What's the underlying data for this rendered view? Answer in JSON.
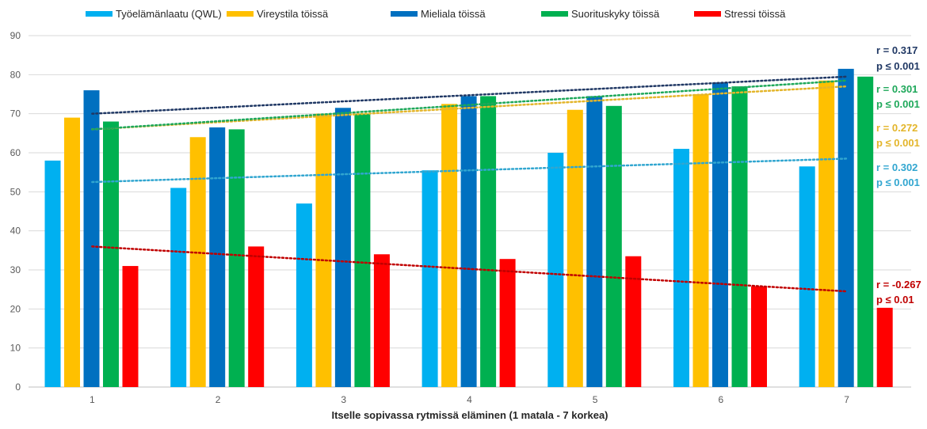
{
  "chart_data": {
    "type": "bar",
    "title": "",
    "xlabel": "Itselle sopivassa rytmissä eläminen (1 matala - 7 korkea)",
    "ylabel": "",
    "ylim": [
      0,
      90
    ],
    "yticks": [
      0,
      10,
      20,
      30,
      40,
      50,
      60,
      70,
      80,
      90
    ],
    "grid": true,
    "legend_position": "top",
    "categories": [
      "1",
      "2",
      "3",
      "4",
      "5",
      "6",
      "7"
    ],
    "series": [
      {
        "name": "Työelämänlaatu (QWL)",
        "color": "#00B0F0",
        "values": [
          58,
          51,
          47,
          55.5,
          60,
          61,
          56.5
        ],
        "trend": {
          "start": 52.5,
          "end": 58.5,
          "color": "#31A6D0"
        },
        "r_label": "r = 0.302",
        "p_label": "p ≤ 0.001"
      },
      {
        "name": "Vireystila töissä",
        "color": "#FFC000",
        "values": [
          69,
          64,
          70,
          72.5,
          71,
          75,
          78.5
        ],
        "trend": {
          "start": 66,
          "end": 77,
          "color": "#E3B52A"
        },
        "r_label": "r = 0.272",
        "p_label": "p ≤ 0.001"
      },
      {
        "name": "Mieliala töissä",
        "color": "#0070C0",
        "values": [
          76,
          66.5,
          71.5,
          74.5,
          74.5,
          78,
          81.5
        ],
        "trend": {
          "start": 70,
          "end": 79.5,
          "color": "#203864"
        },
        "r_label": "r = 0.317",
        "p_label": "p ≤ 0.001"
      },
      {
        "name": "Suorituskyky töissä",
        "color": "#00B050",
        "values": [
          68,
          66,
          70,
          74.5,
          72,
          77,
          79.5
        ],
        "trend": {
          "start": 66,
          "end": 78.5,
          "color": "#1EA85A"
        },
        "r_label": "r = 0.301",
        "p_label": "p ≤ 0.001"
      },
      {
        "name": "Stressi töissä",
        "color": "#FF0000",
        "values": [
          31,
          36,
          34,
          32.8,
          33.5,
          25.8,
          20.3
        ],
        "trend": {
          "start": 36,
          "end": 24.5,
          "color": "#C00000"
        },
        "r_label": "r = -0.267",
        "p_label": "p ≤ 0.01"
      }
    ]
  }
}
